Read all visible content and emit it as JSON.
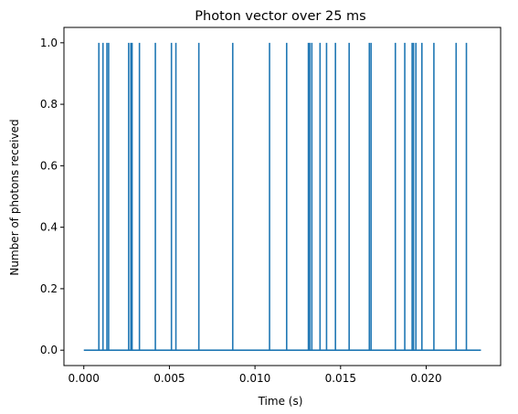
{
  "chart_data": {
    "type": "line",
    "title": "Photon vector over 25 ms",
    "xlabel": "Time (s)",
    "ylabel": "Number of photons received",
    "xlim": [
      -0.00116,
      0.02435
    ],
    "ylim": [
      -0.05,
      1.05
    ],
    "x_ticks": [
      0.0,
      0.005,
      0.01,
      0.015,
      0.02
    ],
    "x_tick_labels": [
      "0.000",
      "0.005",
      "0.010",
      "0.015",
      "0.020"
    ],
    "y_ticks": [
      0.0,
      0.2,
      0.4,
      0.6,
      0.8,
      1.0
    ],
    "y_tick_labels": [
      "0.0",
      "0.2",
      "0.4",
      "0.6",
      "0.8",
      "1.0"
    ],
    "grid": false,
    "line_color": "#1f77b4",
    "series": [
      {
        "baseline_x_range": [
          0.0,
          0.0232
        ],
        "baseline_value": 0,
        "photon_arrival_times": [
          0.00088,
          0.00112,
          0.00135,
          0.00145,
          0.00262,
          0.00275,
          0.00282,
          0.00325,
          0.00418,
          0.00512,
          0.00538,
          0.00672,
          0.0087,
          0.01085,
          0.01185,
          0.01312,
          0.0132,
          0.01332,
          0.0138,
          0.01418,
          0.0147,
          0.0155,
          0.01668,
          0.01678,
          0.0182,
          0.01875,
          0.01918,
          0.01926,
          0.0194,
          0.01975,
          0.02045,
          0.02175,
          0.02235
        ],
        "peak_value": 1
      }
    ]
  }
}
